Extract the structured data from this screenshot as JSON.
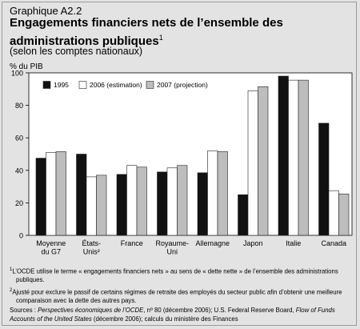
{
  "header": {
    "kicker": "Graphique A2.2",
    "title": "Engagements financiers nets de l’ensemble des administrations publiques",
    "title_sup": "1",
    "subtitle": "(selon les comptes nationaux)",
    "unit": "% du PIB"
  },
  "colors": {
    "background": "#e3e3e3",
    "plot_bg": "#ffffff",
    "s1995": "#111111",
    "s2006": "#ffffff",
    "s2007": "#bdbdbd"
  },
  "chart_data": {
    "type": "bar",
    "categories": [
      [
        "Moyenne",
        "du G7"
      ],
      [
        "États-",
        "Unis²"
      ],
      [
        "France"
      ],
      [
        "Royaume-",
        "Uni"
      ],
      [
        "Allemagne"
      ],
      [
        "Japon"
      ],
      [
        "Italie"
      ],
      [
        "Canada"
      ]
    ],
    "series": [
      {
        "name": "1995",
        "values": [
          47.5,
          50,
          37.5,
          39,
          38.5,
          25,
          98,
          69
        ]
      },
      {
        "name": "2006 (estimation)",
        "values": [
          51,
          36,
          43,
          41.5,
          52,
          89,
          95.5,
          27.5
        ]
      },
      {
        "name": "2007 (projection)",
        "values": [
          51.5,
          37,
          42,
          43,
          51.5,
          91.5,
          95.5,
          25.5
        ]
      }
    ],
    "ylim": [
      0,
      100
    ],
    "yticks": [
      0,
      20,
      40,
      60,
      80,
      100
    ],
    "ylabel": "% du PIB",
    "legend_position": "top-left",
    "grid": false
  },
  "notes": {
    "note1_mark": "1",
    "note1": "L’OCDE utilise le terme « engagements financiers nets » au sens de « dette nette » de l’ensemble des administrations publiques.",
    "note2_mark": "2",
    "note2": "Ajusté pour exclure le passif de certains régimes de retraite des employés du secteur public afin d’obtenir une meilleure comparaison avec la dette des autres pays.",
    "sources_prefix": "Sources : ",
    "sources_italic1": "Perspectives économiques de l’OCDE",
    "sources_mid1": ", nº 80 (décembre 2006); U.S. Federal Reserve Board, ",
    "sources_italic2": "Flow of Funds Accounts of the United States",
    "sources_end": " (décembre 2006); calculs du ministère des Finances"
  }
}
